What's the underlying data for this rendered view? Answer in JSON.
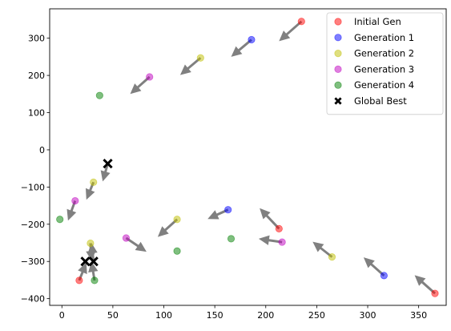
{
  "chart_data": {
    "type": "scatter",
    "title": "",
    "xlabel": "",
    "ylabel": "",
    "xlim": [
      -12,
      377
    ],
    "ylim": [
      -418,
      379
    ],
    "xticks": [
      0,
      50,
      100,
      150,
      200,
      250,
      300,
      350
    ],
    "yticks": [
      -400,
      -300,
      -200,
      -100,
      0,
      100,
      200,
      300
    ],
    "grid": false,
    "legend_position": "top-right",
    "colors": {
      "arrow": "#808080",
      "axes": "#000000",
      "background": "#ffffff"
    },
    "series": [
      {
        "name": "Initial Gen",
        "color": "#ff0000",
        "marker": "circle",
        "points": [
          [
            235,
            345
          ],
          [
            213,
            -212
          ],
          [
            366,
            -386
          ],
          [
            17,
            -351
          ]
        ]
      },
      {
        "name": "Generation 1",
        "color": "#0000ff",
        "marker": "circle",
        "points": [
          [
            186,
            296
          ],
          [
            163,
            -161
          ],
          [
            316,
            -338
          ]
        ]
      },
      {
        "name": "Generation 2",
        "color": "#bfbf00",
        "marker": "circle",
        "points": [
          [
            136,
            247
          ],
          [
            113,
            -187
          ],
          [
            265,
            -288
          ],
          [
            31,
            -87
          ],
          [
            28,
            -251
          ]
        ]
      },
      {
        "name": "Generation 3",
        "color": "#bf00bf",
        "marker": "circle",
        "points": [
          [
            86,
            196
          ],
          [
            216,
            -248
          ],
          [
            63,
            -237
          ],
          [
            13,
            -137
          ]
        ]
      },
      {
        "name": "Generation 4",
        "color": "#008000",
        "marker": "circle",
        "points": [
          [
            37,
            146
          ],
          [
            166,
            -239
          ],
          [
            113,
            -272
          ],
          [
            -2,
            -187
          ],
          [
            32,
            -351
          ]
        ]
      },
      {
        "name": "Global Best",
        "color": "#000000",
        "marker": "x",
        "points": [
          [
            45,
            -37
          ],
          [
            23,
            -300
          ],
          [
            31,
            -300
          ]
        ]
      }
    ],
    "arrows": [
      {
        "from": [
          235,
          345
        ],
        "to": [
          213,
          292
        ]
      },
      {
        "from": [
          186,
          296
        ],
        "to": [
          166,
          250
        ]
      },
      {
        "from": [
          136,
          247
        ],
        "to": [
          116,
          201
        ]
      },
      {
        "from": [
          86,
          196
        ],
        "to": [
          67,
          150
        ]
      },
      {
        "from": [
          213,
          -212
        ],
        "to": [
          194,
          -157
        ]
      },
      {
        "from": [
          163,
          -161
        ],
        "to": [
          143,
          -186
        ]
      },
      {
        "from": [
          216,
          -248
        ],
        "to": [
          193,
          -239
        ]
      },
      {
        "from": [
          265,
          -288
        ],
        "to": [
          246,
          -247
        ]
      },
      {
        "from": [
          316,
          -338
        ],
        "to": [
          296,
          -289
        ]
      },
      {
        "from": [
          366,
          -386
        ],
        "to": [
          346,
          -337
        ]
      },
      {
        "from": [
          113,
          -187
        ],
        "to": [
          94,
          -234
        ]
      },
      {
        "from": [
          63,
          -237
        ],
        "to": [
          83,
          -274
        ]
      },
      {
        "from": [
          45,
          -37
        ],
        "to": [
          40,
          -85
        ]
      },
      {
        "from": [
          31,
          -87
        ],
        "to": [
          24,
          -134
        ]
      },
      {
        "from": [
          13,
          -137
        ],
        "to": [
          6,
          -190
        ]
      },
      {
        "from": [
          28,
          -251
        ],
        "to": [
          29,
          -298
        ]
      },
      {
        "from": [
          31,
          -300
        ],
        "to": [
          29,
          -250
        ]
      },
      {
        "from": [
          17,
          -351
        ],
        "to": [
          24,
          -303
        ]
      },
      {
        "from": [
          32,
          -351
        ],
        "to": [
          29,
          -300
        ]
      }
    ]
  }
}
